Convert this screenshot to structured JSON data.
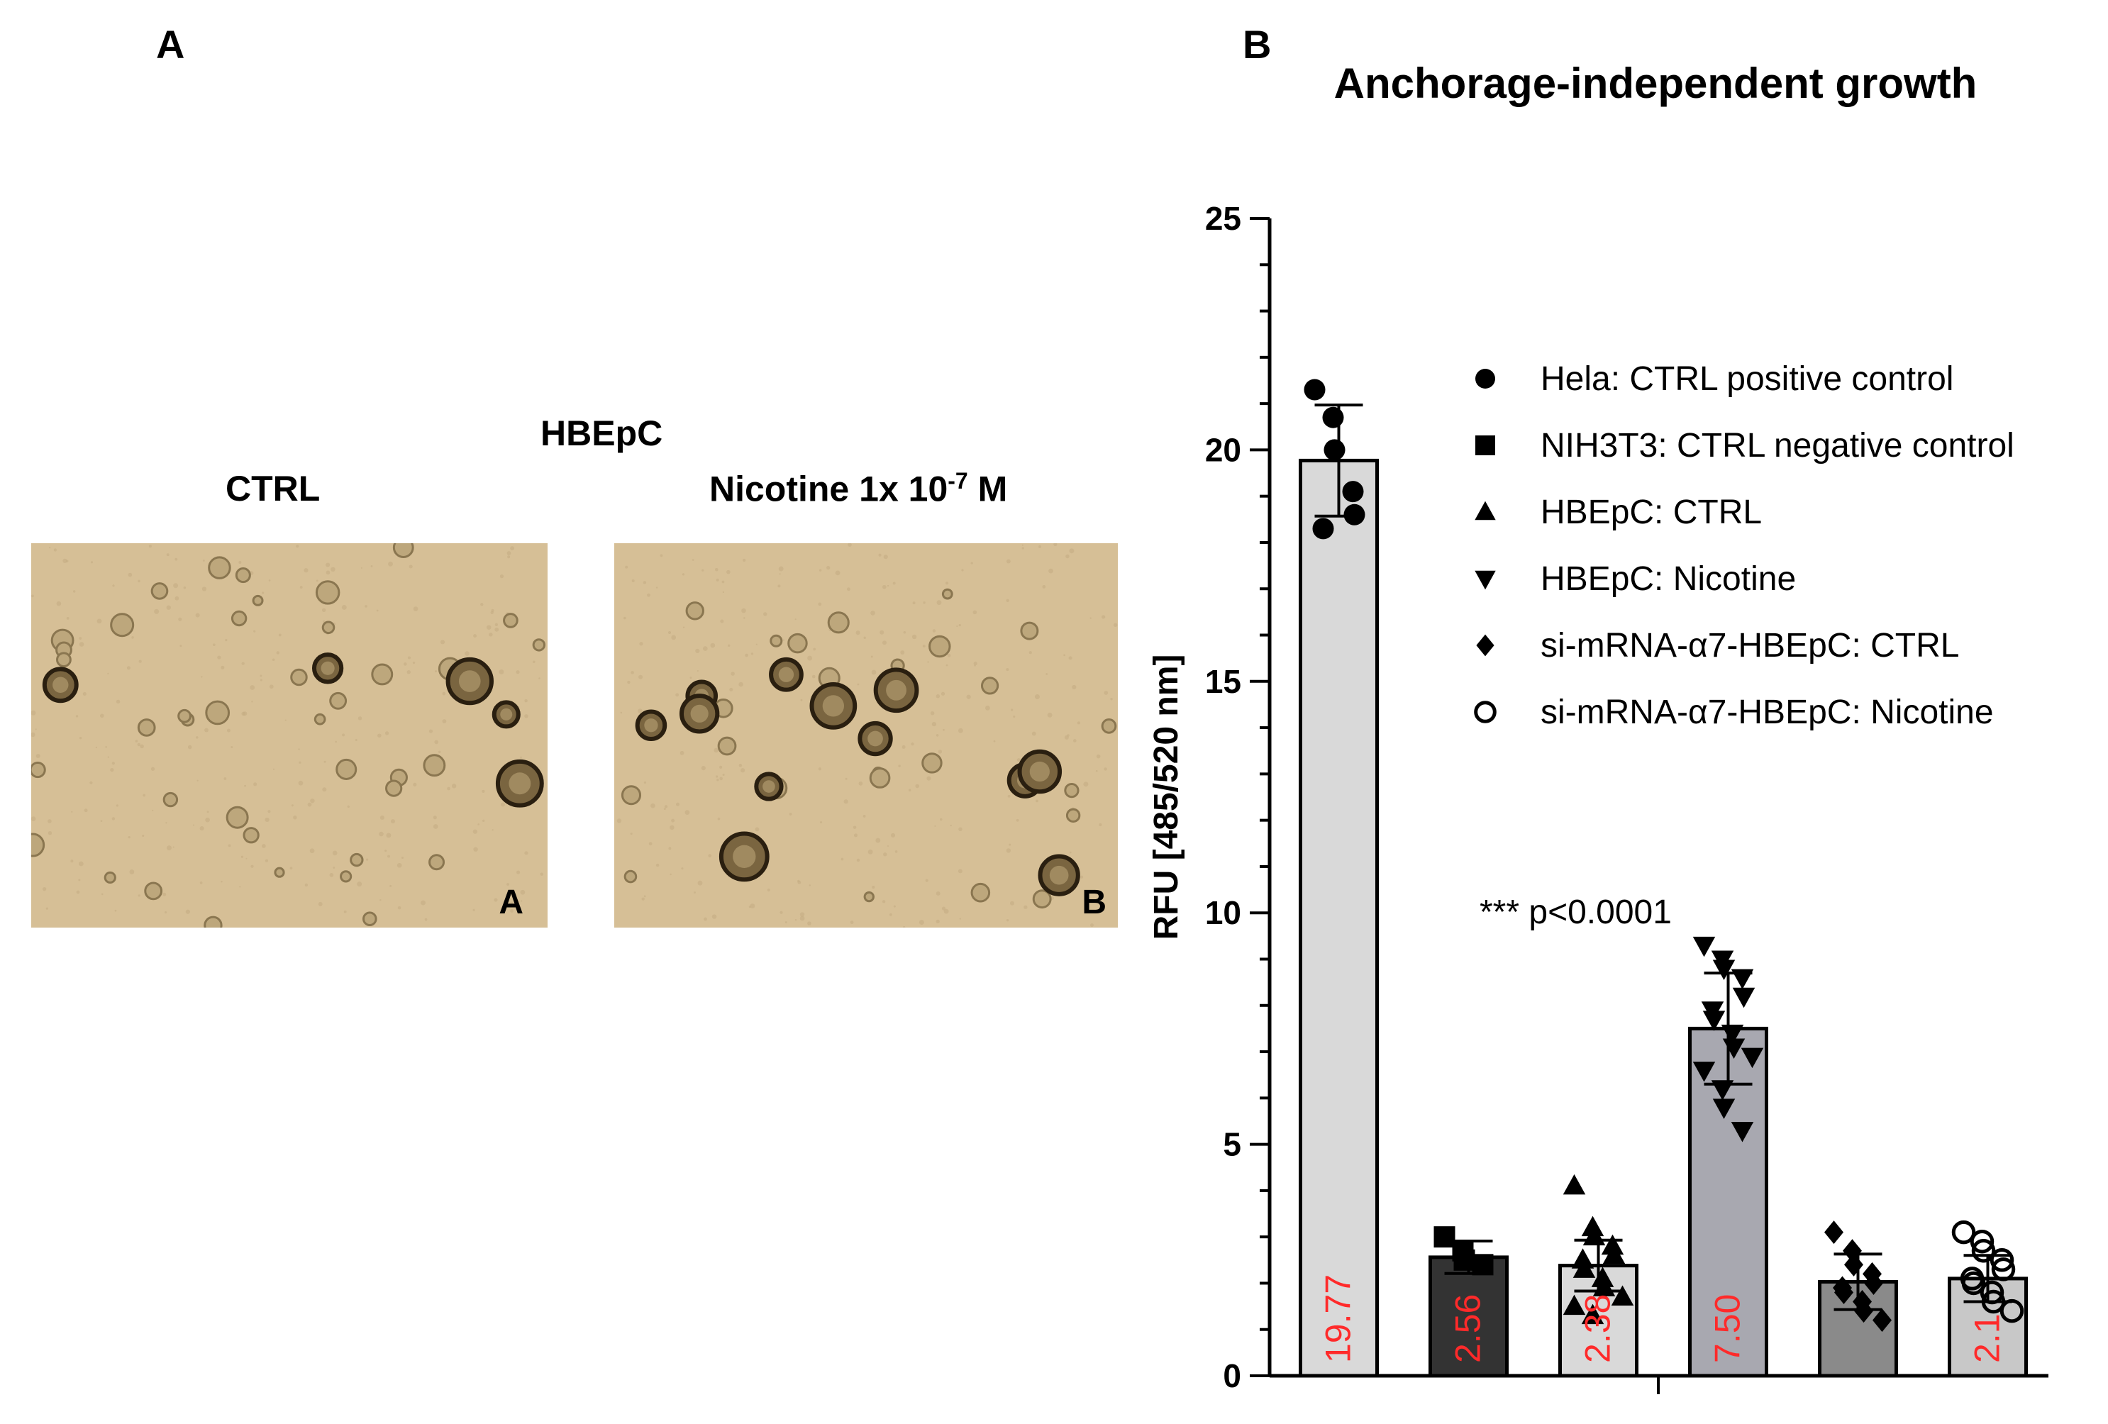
{
  "panel_a": {
    "letter": "A",
    "cell_line": "HBEpC",
    "left_condition": "CTRL",
    "right_condition_prefix": "Nicotine 1x 10",
    "right_condition_exp": "-7",
    "right_condition_suffix": " M",
    "left_tag": "A",
    "right_tag": "B"
  },
  "panel_b": {
    "letter": "B"
  },
  "colors": {
    "image_bg": "#d6bf96",
    "value_label": "#ff2a2a"
  },
  "chart_data": {
    "type": "bar",
    "title": "Anchorage-independent growth",
    "ylabel": "RFU [485/520 nm]",
    "xlabel": "",
    "ylim": [
      0,
      25
    ],
    "yticks": [
      0,
      5,
      10,
      15,
      20,
      25
    ],
    "categories": [
      "Hela: CTRL positive control",
      "NIH3T3: CTRL negative control",
      "HBEpC: CTRL",
      "HBEpC: Nicotine",
      "si-mRNA-α7-HBEpC: CTRL",
      "si-mRNA-α7-HBEpC: Nicotine"
    ],
    "values": [
      19.77,
      2.56,
      2.38,
      7.5,
      2.03,
      2.1
    ],
    "value_labels": [
      "19.77",
      "2.56",
      "2.38",
      "7.50",
      "",
      "2.1"
    ],
    "sd": [
      1.2,
      0.35,
      0.55,
      1.2,
      0.6,
      0.5
    ],
    "bar_colors": [
      "#d9d9d9",
      "#333333",
      "#d9d9d9",
      "#a8a8b0",
      "#8a8a8a",
      "#c8c8c8"
    ],
    "markers": [
      "circle",
      "square",
      "triangle-up",
      "triangle-down",
      "diamond",
      "open-circle"
    ],
    "points": [
      [
        21.3,
        20.7,
        20.0,
        19.1,
        18.6,
        18.3
      ],
      [
        3.0,
        2.7,
        2.5,
        2.4
      ],
      [
        4.1,
        3.2,
        3.0,
        2.8,
        2.6,
        2.5,
        2.3,
        2.1,
        1.9,
        1.7,
        1.5,
        1.3
      ],
      [
        9.3,
        9.0,
        8.8,
        8.6,
        8.2,
        7.9,
        7.7,
        7.4,
        7.1,
        6.9,
        6.6,
        6.2,
        5.8,
        5.3
      ],
      [
        3.1,
        2.7,
        2.4,
        2.2,
        2.0,
        1.9,
        1.8,
        1.6,
        1.4,
        1.2
      ],
      [
        3.1,
        2.9,
        2.7,
        2.5,
        2.3,
        2.1,
        2.0,
        1.8,
        1.6,
        1.4
      ]
    ],
    "legend_position": "top-right",
    "annotation": "*** p<0.0001",
    "grid": false
  }
}
